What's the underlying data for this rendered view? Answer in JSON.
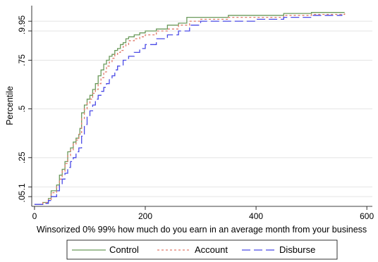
{
  "chart_data": {
    "type": "line",
    "title": "",
    "xlabel": "Winsorized  0%  99% how much do you earn in an average month from your business",
    "ylabel": "Percentile",
    "xlim": [
      -5,
      610
    ],
    "ylim": [
      0.0,
      1.03
    ],
    "x_ticks": [
      0,
      200,
      400,
      600
    ],
    "y_ticks": [
      {
        "value": 0.05,
        "label": ".05"
      },
      {
        "value": 0.1,
        "label": ".1"
      },
      {
        "value": 0.25,
        "label": ".25"
      },
      {
        "value": 0.5,
        "label": ".5"
      },
      {
        "value": 0.75,
        "label": ".75"
      },
      {
        "value": 0.9,
        "label": ".9"
      },
      {
        "value": 0.95,
        "label": ".95"
      }
    ],
    "grid": true,
    "legend_position": "bottom",
    "series": [
      {
        "name": "Control",
        "color": "#6b9a5b",
        "dash": "solid",
        "x": [
          0,
          15,
          25,
          30,
          40,
          45,
          50,
          55,
          60,
          65,
          70,
          75,
          80,
          82,
          85,
          90,
          95,
          100,
          105,
          110,
          115,
          120,
          125,
          130,
          135,
          140,
          145,
          150,
          155,
          160,
          165,
          170,
          180,
          190,
          200,
          220,
          240,
          260,
          275,
          300,
          350,
          400,
          450,
          500,
          560
        ],
        "y": [
          0.01,
          0.02,
          0.04,
          0.08,
          0.11,
          0.16,
          0.19,
          0.23,
          0.28,
          0.3,
          0.33,
          0.35,
          0.37,
          0.4,
          0.48,
          0.52,
          0.55,
          0.57,
          0.6,
          0.63,
          0.67,
          0.7,
          0.73,
          0.75,
          0.77,
          0.78,
          0.8,
          0.81,
          0.83,
          0.84,
          0.86,
          0.87,
          0.88,
          0.89,
          0.9,
          0.91,
          0.93,
          0.94,
          0.97,
          0.97,
          0.98,
          0.98,
          0.99,
          0.995,
          0.995
        ]
      },
      {
        "name": "Account",
        "color": "#e07a6a",
        "dash": "dotted",
        "x": [
          0,
          15,
          25,
          30,
          40,
          45,
          50,
          55,
          60,
          65,
          70,
          75,
          80,
          85,
          90,
          95,
          100,
          105,
          110,
          115,
          120,
          125,
          130,
          135,
          140,
          145,
          150,
          155,
          160,
          165,
          170,
          180,
          190,
          200,
          220,
          240,
          260,
          280,
          300,
          350,
          400,
          450,
          500,
          560
        ],
        "y": [
          0.01,
          0.02,
          0.035,
          0.07,
          0.1,
          0.14,
          0.18,
          0.22,
          0.26,
          0.29,
          0.32,
          0.34,
          0.37,
          0.45,
          0.5,
          0.53,
          0.55,
          0.58,
          0.6,
          0.63,
          0.66,
          0.69,
          0.72,
          0.74,
          0.76,
          0.78,
          0.79,
          0.8,
          0.82,
          0.83,
          0.85,
          0.86,
          0.87,
          0.88,
          0.9,
          0.91,
          0.93,
          0.95,
          0.96,
          0.97,
          0.97,
          0.98,
          0.985,
          0.99
        ]
      },
      {
        "name": "Disburse",
        "color": "#4a4ae6",
        "dash": "longdash",
        "x": [
          0,
          15,
          25,
          30,
          40,
          45,
          50,
          55,
          60,
          65,
          70,
          75,
          80,
          85,
          90,
          95,
          100,
          105,
          110,
          115,
          120,
          125,
          130,
          135,
          140,
          145,
          150,
          160,
          170,
          180,
          190,
          200,
          220,
          240,
          260,
          280,
          300,
          350,
          400,
          450,
          500,
          555
        ],
        "y": [
          0.01,
          0.015,
          0.03,
          0.05,
          0.08,
          0.11,
          0.14,
          0.17,
          0.2,
          0.23,
          0.25,
          0.28,
          0.3,
          0.36,
          0.42,
          0.46,
          0.49,
          0.52,
          0.55,
          0.57,
          0.59,
          0.61,
          0.63,
          0.65,
          0.67,
          0.7,
          0.72,
          0.75,
          0.77,
          0.79,
          0.81,
          0.83,
          0.86,
          0.88,
          0.9,
          0.93,
          0.95,
          0.95,
          0.96,
          0.97,
          0.98,
          0.985
        ]
      }
    ]
  }
}
